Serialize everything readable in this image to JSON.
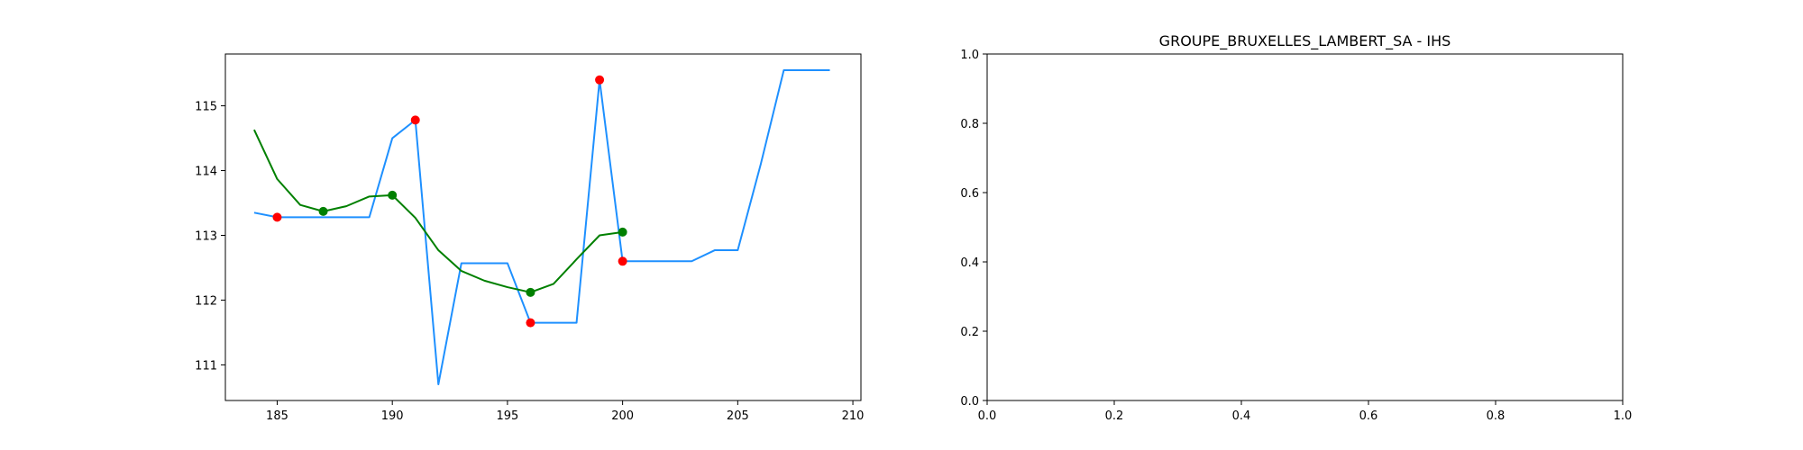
{
  "chart_data": [
    {
      "type": "line",
      "title": "",
      "xlabel": "",
      "ylabel": "",
      "xlim": [
        182.75,
        210.35
      ],
      "ylim": [
        110.45,
        115.8
      ],
      "xticks": [
        185,
        190,
        195,
        200,
        205,
        210
      ],
      "yticks": [
        111,
        112,
        113,
        114,
        115
      ],
      "grid": false,
      "series": [
        {
          "color": "#1e90ff",
          "style": "line",
          "x": [
            184,
            185,
            186,
            187,
            188,
            189,
            190,
            191,
            192,
            193,
            194,
            195,
            196,
            197,
            198,
            199,
            200,
            201,
            202,
            203,
            204,
            205,
            206,
            207,
            208,
            209
          ],
          "y": [
            113.35,
            113.28,
            113.28,
            113.28,
            113.28,
            113.28,
            114.5,
            114.78,
            110.7,
            112.57,
            112.57,
            112.57,
            111.65,
            111.65,
            111.65,
            115.4,
            112.6,
            112.6,
            112.6,
            112.6,
            112.77,
            112.77,
            114.1,
            115.55,
            115.55,
            115.55
          ]
        },
        {
          "color": "#008000",
          "style": "line",
          "x": [
            184,
            185,
            186,
            187,
            188,
            189,
            190,
            191,
            192,
            193,
            194,
            195,
            196,
            197,
            198,
            199,
            200
          ],
          "y": [
            114.63,
            113.87,
            113.47,
            113.37,
            113.45,
            113.6,
            113.62,
            113.27,
            112.77,
            112.45,
            112.3,
            112.2,
            112.12,
            112.25,
            112.63,
            113.0,
            113.05
          ]
        },
        {
          "color": "#ff0000",
          "style": "scatter",
          "x": [
            185,
            191,
            196,
            199,
            200
          ],
          "y": [
            113.28,
            114.78,
            111.65,
            115.4,
            112.6
          ]
        },
        {
          "color": "#008000",
          "style": "scatter",
          "x": [
            187,
            190,
            196,
            200
          ],
          "y": [
            113.37,
            113.62,
            112.12,
            113.05
          ]
        }
      ]
    },
    {
      "type": "line",
      "title": "GROUPE_BRUXELLES_LAMBERT_SA - IHS",
      "xlabel": "",
      "ylabel": "",
      "xlim": [
        0.0,
        1.0
      ],
      "ylim": [
        0.0,
        1.0
      ],
      "xticks": [
        "0.0",
        "0.2",
        "0.4",
        "0.6",
        "0.8",
        "1.0"
      ],
      "yticks": [
        "0.0",
        "0.2",
        "0.4",
        "0.6",
        "0.8",
        "1.0"
      ],
      "grid": false,
      "series": []
    }
  ]
}
